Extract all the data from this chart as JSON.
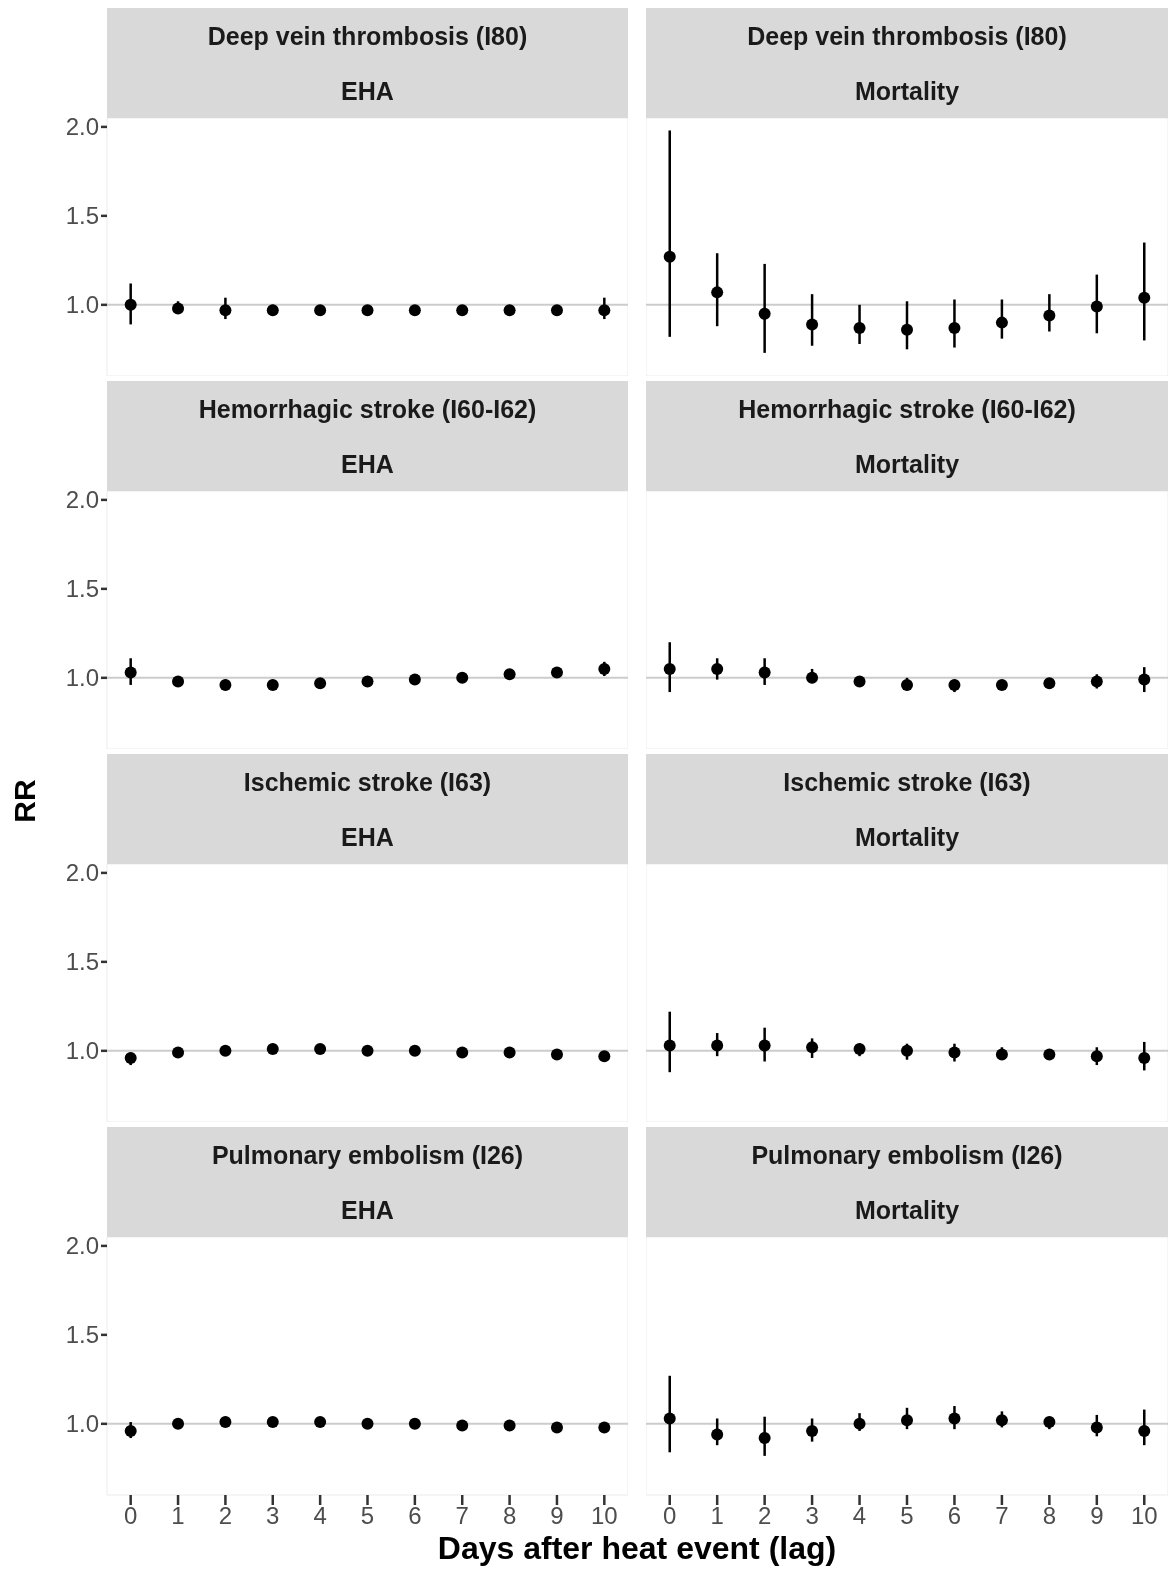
{
  "chart_data": [
    {
      "type": "scatter",
      "title": "Deep vein thrombosis (I80)",
      "subtitle": "EHA",
      "x": [
        0,
        1,
        2,
        3,
        4,
        5,
        6,
        7,
        8,
        9,
        10
      ],
      "values": [
        1.0,
        0.98,
        0.97,
        0.97,
        0.97,
        0.97,
        0.97,
        0.97,
        0.97,
        0.97,
        0.97
      ],
      "errors": [
        [
          0.89,
          1.12
        ],
        [
          0.95,
          1.02
        ],
        [
          0.92,
          1.04
        ],
        [
          0.94,
          1.0
        ],
        null,
        [
          0.95,
          0.99
        ],
        [
          0.95,
          0.99
        ],
        null,
        null,
        [
          0.95,
          0.99
        ],
        [
          0.92,
          1.04
        ]
      ],
      "color": "#000000",
      "marker": "circle",
      "xlim": [
        -0.5,
        10.5
      ],
      "ylim": [
        0.6,
        2.05
      ],
      "xticks": [
        0,
        1,
        2,
        3,
        4,
        5,
        6,
        7,
        8,
        9,
        10
      ],
      "yticks": [
        {
          "value": 1,
          "label": "1.0"
        },
        {
          "value": 1.5,
          "label": "1.5"
        },
        {
          "value": 2,
          "label": "2.0"
        }
      ],
      "ref_lines": [
        {
          "axis": "y",
          "value": 1,
          "color": "#cccccc"
        }
      ],
      "tick_labels": "y"
    },
    {
      "type": "scatter",
      "title": "Deep vein thrombosis (I80)",
      "subtitle": "Mortality",
      "x": [
        0,
        1,
        2,
        3,
        4,
        5,
        6,
        7,
        8,
        9,
        10
      ],
      "values": [
        1.27,
        1.07,
        0.95,
        0.89,
        0.87,
        0.86,
        0.87,
        0.9,
        0.94,
        0.99,
        1.04
      ],
      "errors": [
        [
          0.82,
          1.98
        ],
        [
          0.88,
          1.29
        ],
        [
          0.73,
          1.23
        ],
        [
          0.77,
          1.06
        ],
        [
          0.78,
          1.0
        ],
        [
          0.75,
          1.02
        ],
        [
          0.76,
          1.03
        ],
        [
          0.81,
          1.03
        ],
        [
          0.85,
          1.06
        ],
        [
          0.84,
          1.17
        ],
        [
          0.8,
          1.35
        ]
      ],
      "color": "#000000",
      "marker": "circle",
      "xlim": [
        -0.5,
        10.5
      ],
      "ylim": [
        0.6,
        2.05
      ],
      "xticks": [
        0,
        1,
        2,
        3,
        4,
        5,
        6,
        7,
        8,
        9,
        10
      ],
      "ref_lines": [
        {
          "axis": "y",
          "value": 1,
          "color": "#cccccc"
        }
      ],
      "tick_labels": false
    },
    {
      "type": "scatter",
      "title": "Hemorrhagic stroke (I60-I62)",
      "subtitle": "EHA",
      "x": [
        0,
        1,
        2,
        3,
        4,
        5,
        6,
        7,
        8,
        9,
        10
      ],
      "values": [
        1.03,
        0.98,
        0.96,
        0.96,
        0.97,
        0.98,
        0.99,
        1.0,
        1.02,
        1.03,
        1.05
      ],
      "errors": [
        [
          0.96,
          1.11
        ],
        null,
        [
          0.93,
          0.99
        ],
        null,
        null,
        null,
        null,
        null,
        null,
        null,
        [
          1.01,
          1.09
        ]
      ],
      "color": "#000000",
      "marker": "circle",
      "xlim": [
        -0.5,
        10.5
      ],
      "ylim": [
        0.6,
        2.05
      ],
      "xticks": [
        0,
        1,
        2,
        3,
        4,
        5,
        6,
        7,
        8,
        9,
        10
      ],
      "yticks": [
        {
          "value": 1,
          "label": "1.0"
        },
        {
          "value": 1.5,
          "label": "1.5"
        },
        {
          "value": 2,
          "label": "2.0"
        }
      ],
      "ref_lines": [
        {
          "axis": "y",
          "value": 1,
          "color": "#cccccc"
        }
      ],
      "tick_labels": "y"
    },
    {
      "type": "scatter",
      "title": "Hemorrhagic stroke (I60-I62)",
      "subtitle": "Mortality",
      "x": [
        0,
        1,
        2,
        3,
        4,
        5,
        6,
        7,
        8,
        9,
        10
      ],
      "values": [
        1.05,
        1.05,
        1.03,
        1.0,
        0.98,
        0.96,
        0.96,
        0.96,
        0.97,
        0.98,
        0.99
      ],
      "errors": [
        [
          0.92,
          1.2
        ],
        [
          0.99,
          1.11
        ],
        [
          0.96,
          1.11
        ],
        [
          0.97,
          1.05
        ],
        null,
        [
          0.93,
          1.0
        ],
        [
          0.92,
          0.99
        ],
        null,
        null,
        [
          0.94,
          1.02
        ],
        [
          0.92,
          1.06
        ]
      ],
      "color": "#000000",
      "marker": "circle",
      "xlim": [
        -0.5,
        10.5
      ],
      "ylim": [
        0.6,
        2.05
      ],
      "xticks": [
        0,
        1,
        2,
        3,
        4,
        5,
        6,
        7,
        8,
        9,
        10
      ],
      "ref_lines": [
        {
          "axis": "y",
          "value": 1,
          "color": "#cccccc"
        }
      ],
      "tick_labels": false
    },
    {
      "type": "scatter",
      "title": "Ischemic stroke (I63)",
      "subtitle": "EHA",
      "ylabel": "RR",
      "x": [
        0,
        1,
        2,
        3,
        4,
        5,
        6,
        7,
        8,
        9,
        10
      ],
      "values": [
        0.96,
        0.99,
        1.0,
        1.01,
        1.01,
        1.0,
        1.0,
        0.99,
        0.99,
        0.98,
        0.97
      ],
      "errors": [
        [
          0.92,
          0.99
        ],
        null,
        null,
        null,
        null,
        null,
        null,
        null,
        null,
        null,
        null
      ],
      "color": "#000000",
      "marker": "circle",
      "xlim": [
        -0.5,
        10.5
      ],
      "ylim": [
        0.6,
        2.05
      ],
      "xticks": [
        0,
        1,
        2,
        3,
        4,
        5,
        6,
        7,
        8,
        9,
        10
      ],
      "yticks": [
        {
          "value": 1,
          "label": "1.0"
        },
        {
          "value": 1.5,
          "label": "1.5"
        },
        {
          "value": 2,
          "label": "2.0"
        }
      ],
      "ref_lines": [
        {
          "axis": "y",
          "value": 1,
          "color": "#cccccc"
        }
      ],
      "tick_labels": "y"
    },
    {
      "type": "scatter",
      "title": "Ischemic stroke (I63)",
      "subtitle": "Mortality",
      "x": [
        0,
        1,
        2,
        3,
        4,
        5,
        6,
        7,
        8,
        9,
        10
      ],
      "values": [
        1.03,
        1.03,
        1.03,
        1.02,
        1.01,
        1.0,
        0.99,
        0.98,
        0.98,
        0.97,
        0.96
      ],
      "errors": [
        [
          0.88,
          1.22
        ],
        [
          0.97,
          1.1
        ],
        [
          0.94,
          1.13
        ],
        [
          0.96,
          1.07
        ],
        [
          0.97,
          1.04
        ],
        [
          0.95,
          1.04
        ],
        [
          0.94,
          1.04
        ],
        [
          0.95,
          1.02
        ],
        [
          0.95,
          1.0
        ],
        [
          0.92,
          1.02
        ],
        [
          0.89,
          1.05
        ]
      ],
      "color": "#000000",
      "marker": "circle",
      "xlim": [
        -0.5,
        10.5
      ],
      "ylim": [
        0.6,
        2.05
      ],
      "xticks": [
        0,
        1,
        2,
        3,
        4,
        5,
        6,
        7,
        8,
        9,
        10
      ],
      "ref_lines": [
        {
          "axis": "y",
          "value": 1,
          "color": "#cccccc"
        }
      ],
      "tick_labels": false
    },
    {
      "type": "scatter",
      "title": "Pulmonary embolism (I26)",
      "subtitle": "EHA",
      "xlabel": "Days after heat event (lag)",
      "x": [
        0,
        1,
        2,
        3,
        4,
        5,
        6,
        7,
        8,
        9,
        10
      ],
      "values": [
        0.96,
        1.0,
        1.01,
        1.01,
        1.01,
        1.0,
        1.0,
        0.99,
        0.99,
        0.98,
        0.98
      ],
      "errors": [
        [
          0.92,
          1.01
        ],
        null,
        [
          0.99,
          1.04
        ],
        null,
        null,
        null,
        null,
        null,
        null,
        null,
        [
          0.96,
          1.0
        ]
      ],
      "color": "#000000",
      "marker": "circle",
      "xlim": [
        -0.5,
        10.5
      ],
      "ylim": [
        0.6,
        2.05
      ],
      "xticks": [
        0,
        1,
        2,
        3,
        4,
        5,
        6,
        7,
        8,
        9,
        10
      ],
      "yticks": [
        {
          "value": 1,
          "label": "1.0"
        },
        {
          "value": 1.5,
          "label": "1.5"
        },
        {
          "value": 2,
          "label": "2.0"
        }
      ],
      "ref_lines": [
        {
          "axis": "y",
          "value": 1,
          "color": "#cccccc"
        }
      ]
    },
    {
      "type": "scatter",
      "title": "Pulmonary embolism (I26)",
      "subtitle": "Mortality",
      "x": [
        0,
        1,
        2,
        3,
        4,
        5,
        6,
        7,
        8,
        9,
        10
      ],
      "values": [
        1.03,
        0.94,
        0.92,
        0.96,
        1.0,
        1.02,
        1.03,
        1.02,
        1.01,
        0.98,
        0.96
      ],
      "errors": [
        [
          0.84,
          1.27
        ],
        [
          0.88,
          1.03
        ],
        [
          0.82,
          1.04
        ],
        [
          0.9,
          1.03
        ],
        [
          0.96,
          1.06
        ],
        [
          0.97,
          1.09
        ],
        [
          0.97,
          1.1
        ],
        [
          0.98,
          1.07
        ],
        [
          0.97,
          1.04
        ],
        [
          0.93,
          1.05
        ],
        [
          0.88,
          1.08
        ]
      ],
      "color": "#000000",
      "marker": "circle",
      "xlim": [
        -0.5,
        10.5
      ],
      "ylim": [
        0.6,
        2.05
      ],
      "xticks": [
        0,
        1,
        2,
        3,
        4,
        5,
        6,
        7,
        8,
        9,
        10
      ],
      "ref_lines": [
        {
          "axis": "y",
          "value": 1,
          "color": "#cccccc"
        }
      ],
      "tick_labels": "x"
    }
  ]
}
